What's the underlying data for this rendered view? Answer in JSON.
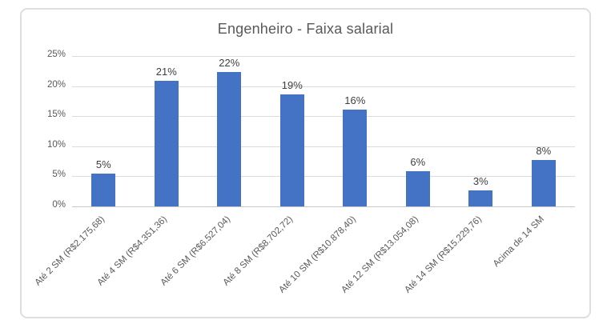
{
  "chart_data": {
    "type": "bar",
    "title": "Engenheiro - Faixa salarial",
    "categories": [
      "Até 2 SM (R$2.175,68)",
      "Até 4 SM (R$4.351,36)",
      "Até 6 SM (R$6.527,04)",
      "Até 8 SM (R$8.702,72)",
      "Até 10 SM (R$10.878,40)",
      "Até 12 SM (R$13.054,08)",
      "Até 14 SM (R$15.229,76)",
      "Acima de 14 SM"
    ],
    "values": [
      5,
      21,
      22,
      19,
      16,
      6,
      3,
      8
    ],
    "data_labels": [
      "5%",
      "21%",
      "22%",
      "19%",
      "16%",
      "6%",
      "3%",
      "8%"
    ],
    "bar_heights_pct": [
      5.4,
      20.9,
      22.4,
      18.6,
      16.1,
      5.8,
      2.7,
      7.7
    ],
    "y_ticks": [
      {
        "label": "0%",
        "value": 0
      },
      {
        "label": "5%",
        "value": 5
      },
      {
        "label": "10%",
        "value": 10
      },
      {
        "label": "15%",
        "value": 15
      },
      {
        "label": "20%",
        "value": 20
      },
      {
        "label": "25%",
        "value": 25
      }
    ],
    "ylim": [
      0,
      25
    ],
    "xlabel": "",
    "ylabel": "",
    "grid": true,
    "legend": "none",
    "colors": {
      "bar": "#4472C4",
      "title_text": "#595959",
      "axis_text": "#595959",
      "data_label_text": "#404040",
      "gridline": "#DCDCDC",
      "frame_border": "#DEDEDE",
      "background": "#FFFFFF"
    }
  }
}
